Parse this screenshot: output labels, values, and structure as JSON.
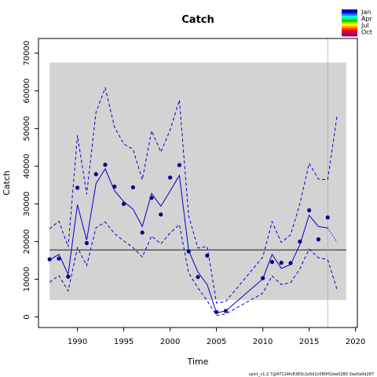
{
  "chart_data": {
    "type": "line",
    "title": "Catch",
    "xlabel": "Time",
    "ylabel": "Catch",
    "xlim": [
      1985.8,
      2020.2
    ],
    "ylim": [
      -2800,
      73900
    ],
    "x_ticks": [
      1990,
      1995,
      2000,
      2005,
      2010,
      2015,
      2020
    ],
    "y_ticks": [
      0,
      10000,
      20000,
      30000,
      40000,
      50000,
      60000,
      70000
    ],
    "grid": false,
    "legend_position": "top-right",
    "legend": [
      {
        "label": "Jan",
        "color": "#0000cc"
      },
      {
        "label": "Apr",
        "color": "#00dd00"
      },
      {
        "label": "Jul",
        "color": "#ff6600"
      },
      {
        "label": "Oct",
        "color": "#880088"
      }
    ],
    "legend_gradient": [
      "#000099",
      "#0000ff",
      "#0088ff",
      "#00ffff",
      "#00ff66",
      "#00cc00",
      "#aadd00",
      "#ffff00",
      "#ffaa00",
      "#ff4400",
      "#ff0000",
      "#cc0044",
      "#880088"
    ],
    "footer": "spict_v1.2.7@47114fc8383c2a5d1c080f02ee0280 3ea5a0d287",
    "colors": {
      "series": "#0000cc",
      "band": "#d3d3d3",
      "reference": "#000000",
      "vline": "#b0b0b0"
    },
    "band": {
      "x": [
        1987,
        2019
      ],
      "y": [
        4500,
        67500
      ]
    },
    "reference_line": 17800,
    "vertical_line": 2017,
    "observations": {
      "x": [
        1987,
        1988,
        1989,
        1990,
        1991,
        1992,
        1993,
        1994,
        1995,
        1996,
        1997,
        1998,
        1999,
        2000,
        2001,
        2002,
        2003,
        2004,
        2005,
        2006,
        2010,
        2011,
        2012,
        2013,
        2014,
        2015,
        2016,
        2017
      ],
      "y": [
        15300,
        15500,
        10700,
        34300,
        19600,
        37900,
        40400,
        34600,
        30000,
        34400,
        22400,
        31600,
        27200,
        37000,
        40300,
        17400,
        10600,
        16300,
        1300,
        1600,
        10300,
        14600,
        14400,
        14300,
        20000,
        28300,
        20600,
        26400
      ]
    },
    "series": [
      {
        "name": "",
        "style": "solid",
        "x": [
          1987,
          1988,
          1989,
          1990,
          1991,
          1992,
          1993,
          1994,
          1995,
          1996,
          1997,
          1998,
          1999,
          2000,
          2001,
          2002,
          2003,
          2004,
          2005,
          2006,
          2010,
          2011,
          2012,
          2013,
          2014,
          2015,
          2016,
          2017
        ],
        "y": [
          15100,
          16600,
          11300,
          29800,
          20400,
          35400,
          39300,
          33500,
          30600,
          28600,
          24000,
          32800,
          29400,
          33400,
          37600,
          17600,
          11900,
          8600,
          1100,
          1600,
          10100,
          16600,
          12900,
          13900,
          19200,
          27000,
          24000,
          23600
        ]
      },
      {
        "name": "",
        "style": "dashed",
        "x": [
          1987,
          1988,
          1989,
          1990,
          1991,
          1992,
          1993,
          1994,
          1995,
          1996,
          1997,
          1998,
          1999,
          2000,
          2001,
          2002,
          2003,
          2004,
          2005,
          2006,
          2010,
          2011,
          2012,
          2013,
          2014,
          2015,
          2016,
          2017
        ],
        "y": [
          23400,
          25400,
          18600,
          48200,
          32600,
          54300,
          60800,
          50400,
          45900,
          44500,
          36400,
          49400,
          43800,
          49600,
          57600,
          26800,
          18300,
          18700,
          3700,
          4100,
          15900,
          25300,
          19800,
          21800,
          30000,
          40800,
          36600,
          36400
        ]
      },
      {
        "name": "",
        "style": "dashed",
        "x": [
          1987,
          1988,
          1989,
          1990,
          1991,
          1992,
          1993,
          1994,
          1995,
          1996,
          1997,
          1998,
          1999,
          2000,
          2001,
          2002,
          2003,
          2004,
          2005,
          2006,
          2010,
          2011,
          2012,
          2013,
          2014,
          2015,
          2016,
          2017
        ],
        "y": [
          9200,
          11000,
          6900,
          18400,
          13600,
          23700,
          25200,
          22100,
          20200,
          18400,
          15900,
          21500,
          19400,
          22300,
          24500,
          11700,
          7700,
          4300,
          400,
          800,
          6300,
          10900,
          8600,
          9100,
          12800,
          18000,
          15700,
          15200
        ]
      },
      {
        "name": "",
        "style": "dotted",
        "x": [
          2017,
          2018
        ],
        "y": [
          23600,
          19900
        ]
      },
      {
        "name": "",
        "style": "dashed",
        "x": [
          2017,
          2018
        ],
        "y": [
          36400,
          53200
        ]
      },
      {
        "name": "",
        "style": "dashed",
        "x": [
          2017,
          2018
        ],
        "y": [
          15200,
          7400
        ]
      }
    ]
  }
}
